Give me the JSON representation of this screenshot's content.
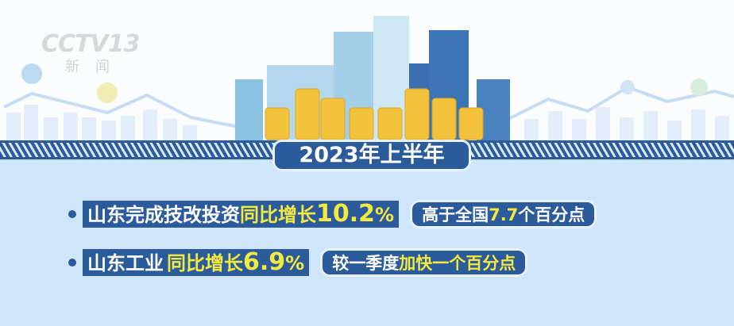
{
  "logo": {
    "brand": "CCTV",
    "channel": "13",
    "subtitle": "新闻"
  },
  "title": "2023年上半年",
  "colors": {
    "primary": "#2c5b9c",
    "highlight": "#f4ea3f",
    "background": "#cfe6fa",
    "coin": "#f2c23a"
  },
  "items": [
    {
      "lead": "山东完成技改投资",
      "growth_label": "同比增长",
      "value": "10.2",
      "unit": "%",
      "note_lead": "高于全国",
      "note_value": "7.7",
      "note_tail": "个百分点"
    },
    {
      "lead": "山东工业",
      "growth_label": "同比增长",
      "value": "6.9",
      "unit": "%",
      "note_lead": "较一季度",
      "note_value": "加快一个百分点",
      "note_tail": ""
    }
  ]
}
